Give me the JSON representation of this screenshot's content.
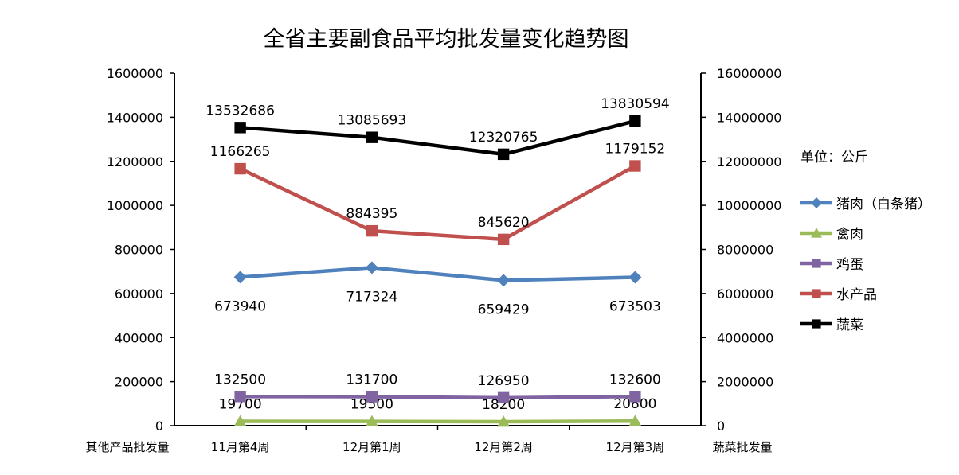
{
  "chart_data": {
    "type": "line",
    "title": "全省主要副食品平均批发量变化趋势图",
    "unit_note": "单位：公斤",
    "categories": [
      "11月第4周",
      "12月第1周",
      "12月第2周",
      "12月第3周"
    ],
    "left_axis": {
      "label": "其他产品批发量",
      "range": [
        0,
        1600000
      ],
      "ticks": [
        "0",
        "200000",
        "400000",
        "600000",
        "800000",
        "1000000",
        "1200000",
        "1400000",
        "1600000"
      ]
    },
    "right_axis": {
      "label": "蔬菜批发量",
      "range": [
        0,
        16000000
      ],
      "ticks": [
        "0",
        "2000000",
        "4000000",
        "6000000",
        "8000000",
        "10000000",
        "12000000",
        "14000000",
        "16000000"
      ]
    },
    "series": [
      {
        "name": "猪肉（白条猪）",
        "axis": "left",
        "marker": "diamond",
        "color": "#4f81bd",
        "label_pos": "below",
        "values": [
          673940,
          717324,
          659429,
          673503
        ]
      },
      {
        "name": "禽肉",
        "axis": "left",
        "marker": "triangle",
        "color": "#9bbb59",
        "label_pos": "above",
        "values": [
          19700,
          19500,
          18200,
          20800
        ]
      },
      {
        "name": "鸡蛋",
        "axis": "left",
        "marker": "square",
        "color": "#8064a2",
        "label_pos": "above",
        "values": [
          132500,
          131700,
          126950,
          132600
        ]
      },
      {
        "name": "水产品",
        "axis": "left",
        "marker": "square",
        "color": "#c0504d",
        "label_pos": "above",
        "values": [
          1166265,
          884395,
          845620,
          1179152
        ]
      },
      {
        "name": "蔬菜",
        "axis": "right",
        "marker": "square",
        "color": "#000000",
        "label_pos": "above",
        "values": [
          13532686,
          13085693,
          12320765,
          13830594
        ]
      }
    ],
    "legend_position": "right"
  }
}
